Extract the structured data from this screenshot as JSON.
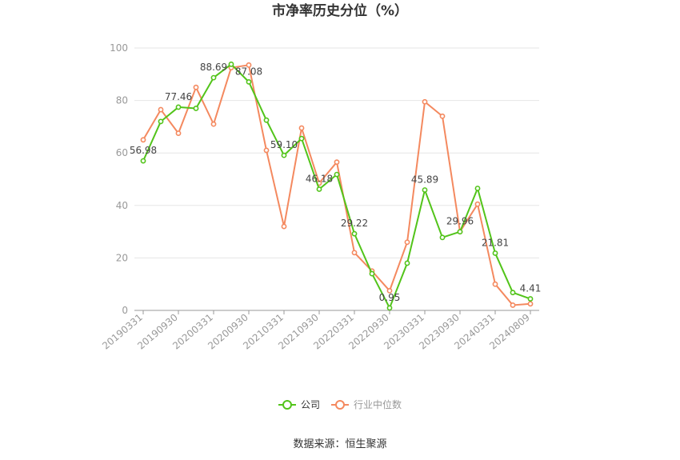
{
  "chart_data": {
    "type": "line",
    "title": "市净率历史分位（%）",
    "source": "数据来源：恒生聚源",
    "ylim": [
      0,
      100
    ],
    "yticks": [
      "0",
      "20",
      "40",
      "60",
      "80",
      "100"
    ],
    "xtick_labels": [
      "20190331",
      "20190930",
      "20200331",
      "20200930",
      "20210331",
      "20210930",
      "20220331",
      "20220930",
      "20230331",
      "20230930",
      "20240331",
      "20240809"
    ],
    "grid": true,
    "legend_position": "bottom-center",
    "x": [
      "20190331",
      "20190630",
      "20190930",
      "20191231",
      "20200331",
      "20200630",
      "20200930",
      "20201231",
      "20210331",
      "20210630",
      "20210930",
      "20211231",
      "20220331",
      "20220630",
      "20220930",
      "20221231",
      "20230331",
      "20230630",
      "20230930",
      "20231231",
      "20240331",
      "20240630",
      "20240809"
    ],
    "series": [
      {
        "name": "公司",
        "color": "#52c41a",
        "values": [
          56.98,
          72.0,
          77.46,
          77.0,
          88.69,
          93.8,
          87.08,
          72.5,
          59.1,
          65.5,
          46.18,
          51.8,
          29.22,
          14.0,
          0.95,
          18.0,
          45.89,
          27.8,
          29.96,
          46.5,
          21.81,
          6.8,
          4.41
        ],
        "labels": [
          "56.98",
          "",
          "77.46",
          "",
          "88.69",
          "",
          "87.08",
          "",
          "59.10",
          "",
          "46.18",
          "",
          "29.22",
          "",
          "0.95",
          "",
          "45.89",
          "",
          "29.96",
          "",
          "21.81",
          "",
          "4.41"
        ]
      },
      {
        "name": "行业中位数",
        "color": "#f4895f",
        "values": [
          65.0,
          76.5,
          67.5,
          85.0,
          71.0,
          92.5,
          93.5,
          61.0,
          32.0,
          69.5,
          48.5,
          56.5,
          22.0,
          15.0,
          7.5,
          26.0,
          79.5,
          74.0,
          30.0,
          40.5,
          10.0,
          2.0,
          2.5
        ],
        "labels": []
      }
    ]
  }
}
